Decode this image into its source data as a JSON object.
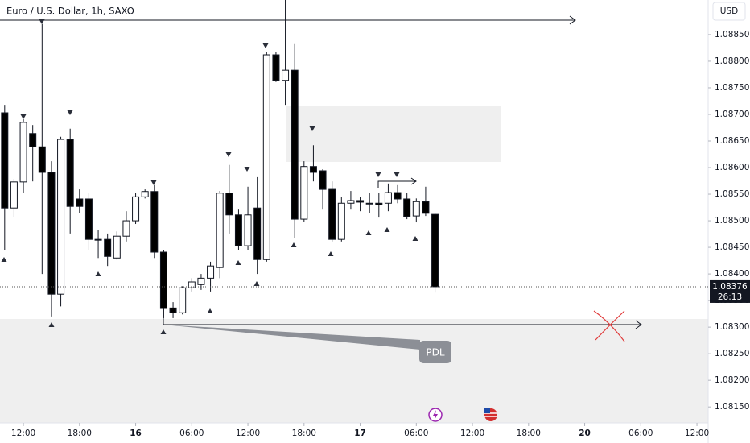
{
  "chart_data": {
    "type": "candlestick",
    "title": "Euro / U.S. Dollar, 1h, SAXO",
    "currency": "USD",
    "annotation": "PDL",
    "countdown": "26:13",
    "last_price": 1.08376,
    "up_color": "#ffffff",
    "down_color": "#000000",
    "x": [
      -2,
      -1,
      0,
      1,
      2,
      3,
      4,
      5,
      6,
      7,
      8,
      9,
      10,
      11,
      12,
      13,
      14,
      15,
      16,
      17,
      18,
      19,
      20,
      21,
      22,
      23,
      24,
      25,
      26,
      27,
      28,
      29,
      30,
      31,
      32,
      33,
      34,
      35,
      36,
      37,
      38,
      39,
      40,
      41,
      42,
      43,
      44
    ],
    "open": [
      1.08703,
      1.08524,
      1.08573,
      1.08664,
      1.08639,
      1.08591,
      1.08362,
      1.08653,
      1.08541,
      1.08541,
      1.08465,
      1.08465,
      1.0843,
      1.08471,
      1.085,
      1.08545,
      1.08555,
      1.08441,
      1.08336,
      1.08327,
      1.08374,
      1.0838,
      1.08392,
      1.08412,
      1.08552,
      1.08511,
      1.08453,
      1.08524,
      1.08427,
      1.08812,
      1.08764,
      1.08783,
      1.08503,
      1.08602,
      1.08594,
      1.08559,
      1.08465,
      1.08533,
      1.08538,
      1.08533,
      1.08533,
      1.08533,
      1.08553,
      1.08541,
      1.08509,
      1.08536,
      1.08512
    ],
    "high": [
      1.08718,
      1.08579,
      1.08691,
      1.0868,
      1.0887,
      1.08612,
      1.08658,
      1.08673,
      1.08559,
      1.08552,
      1.08483,
      1.08476,
      1.0848,
      1.08518,
      1.08552,
      1.08559,
      1.08567,
      1.08445,
      1.08347,
      1.08377,
      1.08392,
      1.084,
      1.08423,
      1.08556,
      1.08605,
      1.08521,
      1.08564,
      1.08582,
      1.08817,
      1.08817,
      1.08915,
      1.08832,
      1.08612,
      1.08642,
      1.08597,
      1.08574,
      1.08544,
      1.08556,
      1.08544,
      1.08552,
      1.08552,
      1.0857,
      1.08567,
      1.08552,
      1.08542,
      1.08564,
      1.08515
    ],
    "low": [
      1.08445,
      1.08506,
      1.08552,
      1.08574,
      1.084,
      1.0832,
      1.08339,
      1.08476,
      1.08514,
      1.08445,
      1.0843,
      1.08415,
      1.08427,
      1.08461,
      1.08494,
      1.08542,
      1.0843,
      1.08317,
      1.08317,
      1.08324,
      1.08367,
      1.0837,
      1.08367,
      1.08392,
      1.08476,
      1.08445,
      1.08445,
      1.084,
      1.08423,
      1.08761,
      1.08718,
      1.08468,
      1.08498,
      1.08574,
      1.08521,
      1.08461,
      1.08461,
      1.08521,
      1.08518,
      1.08514,
      1.08506,
      1.08518,
      1.08533,
      1.08503,
      1.08497,
      1.08509,
      1.08365
    ],
    "close": [
      1.08524,
      1.08573,
      1.08685,
      1.08639,
      1.08591,
      1.08362,
      1.08653,
      1.08527,
      1.08527,
      1.08465,
      1.08464,
      1.08433,
      1.08471,
      1.085,
      1.08545,
      1.08555,
      1.08441,
      1.08335,
      1.08327,
      1.08374,
      1.08385,
      1.08392,
      1.08415,
      1.08552,
      1.08511,
      1.08453,
      1.08511,
      1.08427,
      1.08812,
      1.08764,
      1.08783,
      1.08503,
      1.08602,
      1.08591,
      1.08559,
      1.08465,
      1.08533,
      1.08538,
      1.08535,
      1.08532,
      1.0853,
      1.08553,
      1.08541,
      1.08508,
      1.08536,
      1.08514,
      1.08376
    ],
    "xlim": [
      -2.5,
      73.2
    ],
    "xticks": [
      {
        "value": 0,
        "label": "12:00"
      },
      {
        "value": 6,
        "label": "18:00"
      },
      {
        "value": 12,
        "label": "16"
      },
      {
        "value": 18,
        "label": "06:00"
      },
      {
        "value": 24,
        "label": "12:00"
      },
      {
        "value": 30,
        "label": "18:00"
      },
      {
        "value": 36,
        "label": "17"
      },
      {
        "value": 42,
        "label": "06:00"
      },
      {
        "value": 48,
        "label": "12:00"
      },
      {
        "value": 54,
        "label": "18:00"
      },
      {
        "value": 60,
        "label": "20"
      },
      {
        "value": 66,
        "label": "06:00"
      },
      {
        "value": 72,
        "label": "12:00"
      }
    ],
    "ylim": [
      1.0812,
      1.08915
    ],
    "yticks": [
      {
        "value": 1.0885,
        "label": "1.08850"
      },
      {
        "value": 1.088,
        "label": "1.08800"
      },
      {
        "value": 1.0875,
        "label": "1.08750"
      },
      {
        "value": 1.087,
        "label": "1.08700"
      },
      {
        "value": 1.0865,
        "label": "1.08650"
      },
      {
        "value": 1.086,
        "label": "1.08600"
      },
      {
        "value": 1.0855,
        "label": "1.08550"
      },
      {
        "value": 1.085,
        "label": "1.08500"
      },
      {
        "value": 1.0845,
        "label": "1.08450"
      },
      {
        "value": 1.084,
        "label": "1.08400"
      },
      {
        "value": 1.0835,
        "label": "1.08350"
      },
      {
        "value": 1.083,
        "label": "1.08300"
      },
      {
        "value": 1.0825,
        "label": "1.08250"
      },
      {
        "value": 1.082,
        "label": "1.08200"
      },
      {
        "value": 1.0815,
        "label": "1.08150"
      }
    ]
  }
}
